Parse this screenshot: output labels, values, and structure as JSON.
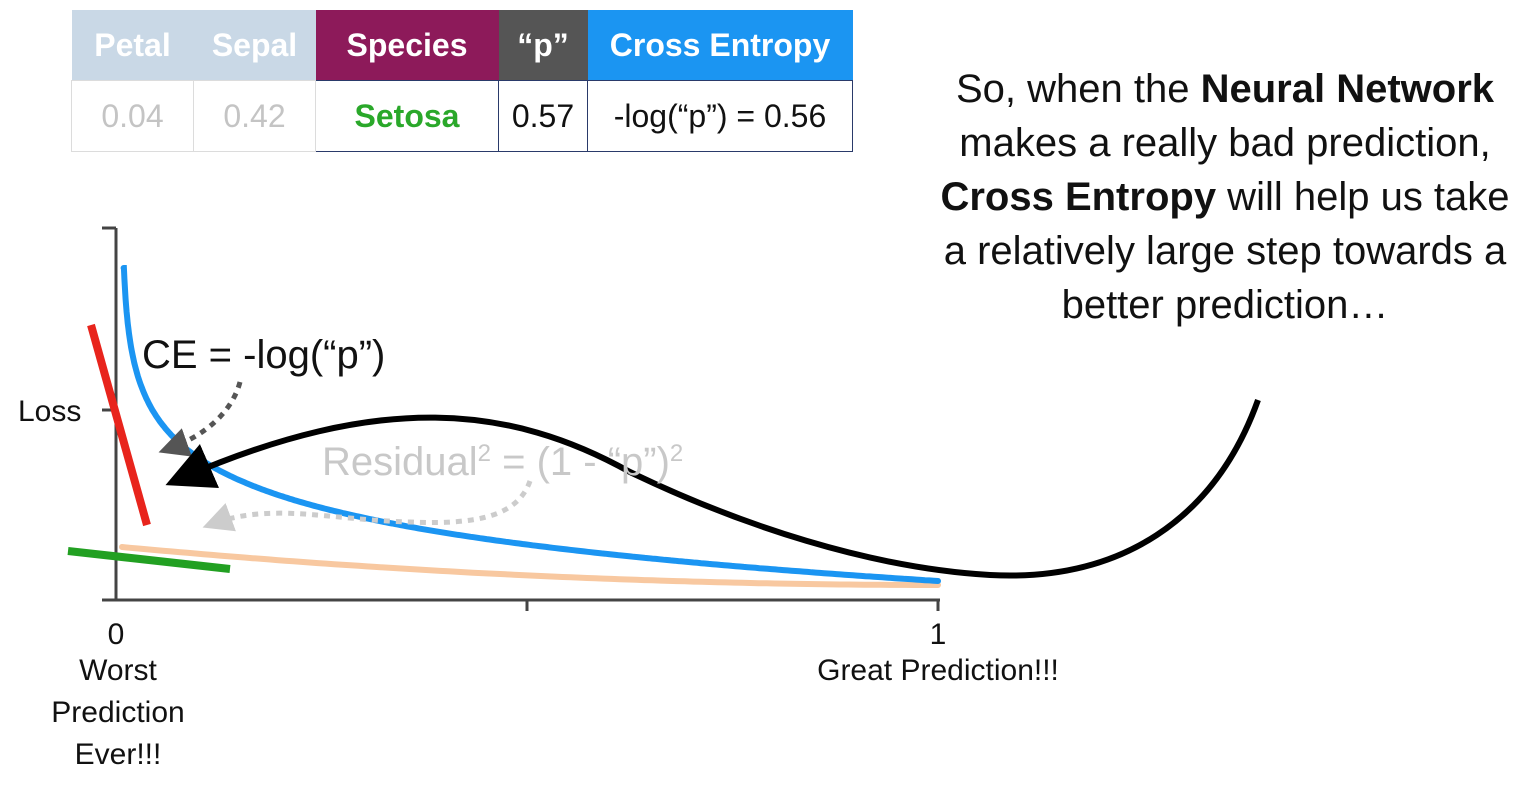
{
  "table": {
    "headers": [
      "Petal",
      "Sepal",
      "Species",
      "“p”",
      "Cross Entropy"
    ],
    "row": [
      "0.04",
      "0.42",
      "Setosa",
      "0.57",
      "-log(“p”) = 0.56"
    ]
  },
  "explanation": [
    {
      "text": "So, when the ",
      "bold": false
    },
    {
      "text": "Neural Network",
      "bold": true
    },
    {
      "text": " makes a really bad prediction, ",
      "bold": false
    },
    {
      "text": "Cross Entropy",
      "bold": true
    },
    {
      "text": " will help us take a relatively large step towards a better prediction…",
      "bold": false
    }
  ],
  "graph": {
    "y_label": "Loss",
    "ce_formula": "CE = -log(“p”)",
    "residual_formula_base": "Residual",
    "residual_formula_mid": " = (1 - “p”)",
    "residual_exponent": "2",
    "x_tick_left": "0",
    "x_tick_right": "1",
    "x_caption_left": "Worst Prediction Ever!!!",
    "x_caption_right": "Great Prediction!!!"
  },
  "colors": {
    "ce_curve": "#1b95f2",
    "residual_curve": "#f8c8a0",
    "ce_tangent": "#e8241c",
    "residual_tangent": "#22a022",
    "species_header": "#8d1a5a",
    "p_header": "#555555",
    "ce_header": "#1b95f2",
    "setosa_text": "#2aa82a"
  }
}
